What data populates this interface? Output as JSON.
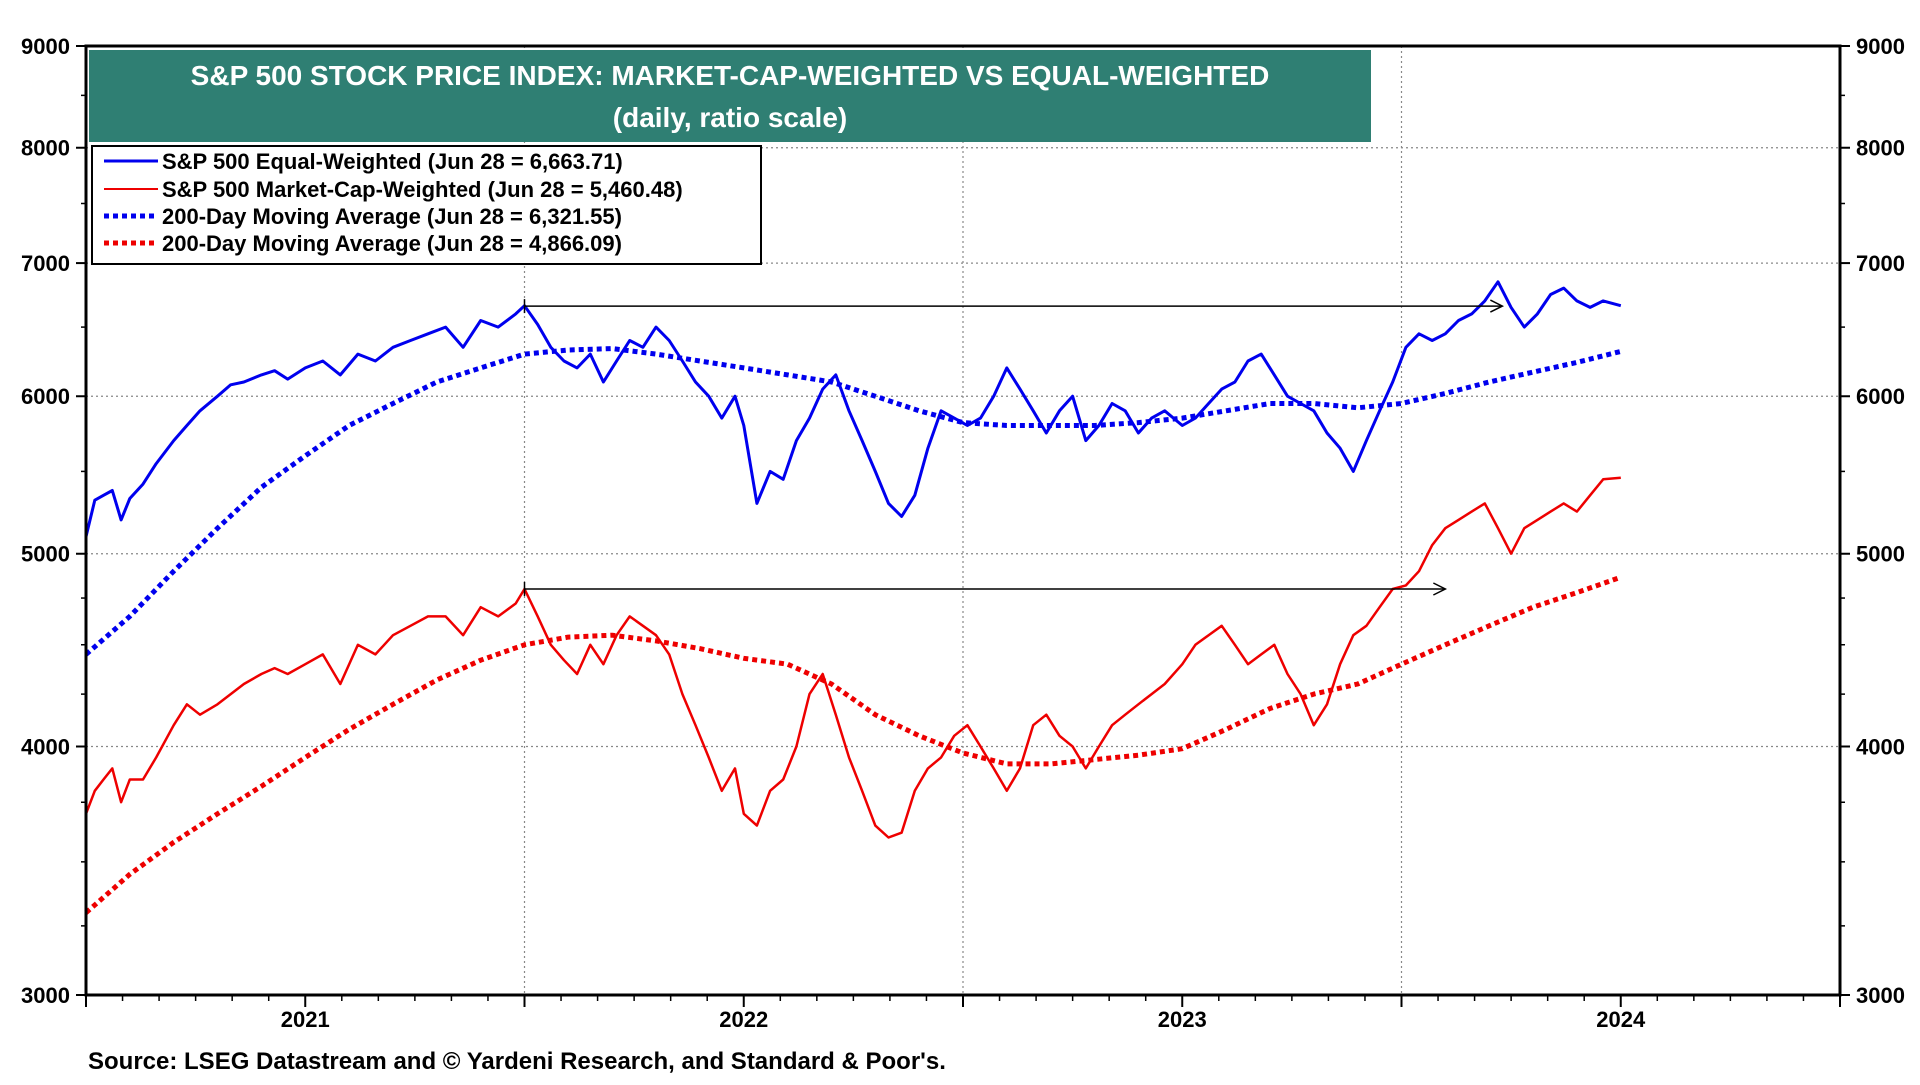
{
  "chart_data": {
    "type": "line",
    "title": "S&P 500 STOCK PRICE INDEX: MARKET-CAP-WEIGHTED VS EQUAL-WEIGHTED",
    "subtitle": "(daily, ratio scale)",
    "scale": "log",
    "ylim": [
      3000,
      9000
    ],
    "xlim": [
      2020.5,
      2024.5
    ],
    "y_ticks": [
      3000,
      4000,
      5000,
      6000,
      7000,
      8000,
      9000
    ],
    "y_tick_labels": [
      "3000",
      "4000",
      "5000",
      "6000",
      "7000",
      "8000",
      "9000"
    ],
    "x_tick_labels": [
      {
        "label": "2021",
        "x": 2021.0
      },
      {
        "label": "2022",
        "x": 2022.0
      },
      {
        "label": "2023",
        "x": 2023.0
      },
      {
        "label": "2024",
        "x": 2024.0
      }
    ],
    "year_gridlines": [
      2021.5,
      2022.5,
      2023.5,
      2024.5
    ],
    "legend_position": "top-left",
    "colors": {
      "banner": "#2f7f73",
      "blue": "#0000ee",
      "red": "#ee0000",
      "grid": "#888888"
    },
    "series": [
      {
        "name": "S&P 500 Equal-Weighted (Jun 28 = 6,663.71)",
        "color": "#0000ee",
        "style": "solid",
        "x": [
          2020.5,
          2020.52,
          2020.54,
          2020.56,
          2020.58,
          2020.6,
          2020.63,
          2020.66,
          2020.7,
          2020.73,
          2020.76,
          2020.8,
          2020.83,
          2020.86,
          2020.9,
          2020.93,
          2020.96,
          2021.0,
          2021.04,
          2021.08,
          2021.12,
          2021.16,
          2021.2,
          2021.24,
          2021.28,
          2021.32,
          2021.36,
          2021.4,
          2021.44,
          2021.48,
          2021.5,
          2021.53,
          2021.56,
          2021.59,
          2021.62,
          2021.65,
          2021.68,
          2021.71,
          2021.74,
          2021.77,
          2021.8,
          2021.83,
          2021.86,
          2021.89,
          2021.92,
          2021.95,
          2021.98,
          2022.0,
          2022.03,
          2022.06,
          2022.09,
          2022.12,
          2022.15,
          2022.18,
          2022.21,
          2022.24,
          2022.27,
          2022.3,
          2022.33,
          2022.36,
          2022.39,
          2022.42,
          2022.45,
          2022.48,
          2022.51,
          2022.54,
          2022.57,
          2022.6,
          2022.63,
          2022.66,
          2022.69,
          2022.72,
          2022.75,
          2022.78,
          2022.81,
          2022.84,
          2022.87,
          2022.9,
          2022.93,
          2022.96,
          2023.0,
          2023.03,
          2023.06,
          2023.09,
          2023.12,
          2023.15,
          2023.18,
          2023.21,
          2023.24,
          2023.27,
          2023.3,
          2023.33,
          2023.36,
          2023.39,
          2023.42,
          2023.45,
          2023.48,
          2023.51,
          2023.54,
          2023.57,
          2023.6,
          2023.63,
          2023.66,
          2023.69,
          2023.72,
          2023.75,
          2023.78,
          2023.81,
          2023.84,
          2023.87,
          2023.9,
          2023.93,
          2023.96,
          2024.0
        ],
        "values": [
          5100,
          5320,
          5350,
          5380,
          5200,
          5330,
          5420,
          5550,
          5700,
          5800,
          5900,
          6000,
          6080,
          6100,
          6150,
          6180,
          6120,
          6200,
          6250,
          6150,
          6300,
          6250,
          6350,
          6400,
          6450,
          6500,
          6350,
          6550,
          6500,
          6600,
          6663,
          6520,
          6350,
          6250,
          6200,
          6300,
          6100,
          6250,
          6400,
          6350,
          6500,
          6400,
          6250,
          6100,
          6000,
          5850,
          6000,
          5800,
          5300,
          5500,
          5450,
          5700,
          5850,
          6050,
          6150,
          5900,
          5700,
          5500,
          5300,
          5220,
          5350,
          5650,
          5900,
          5850,
          5800,
          5850,
          6000,
          6200,
          6050,
          5900,
          5750,
          5900,
          6000,
          5700,
          5800,
          5950,
          5900,
          5750,
          5850,
          5900,
          5800,
          5850,
          5950,
          6050,
          6100,
          6250,
          6300,
          6150,
          6000,
          5950,
          5900,
          5750,
          5650,
          5500,
          5700,
          5900,
          6100,
          6350,
          6450,
          6400,
          6450,
          6550,
          6600,
          6700,
          6850,
          6650,
          6500,
          6600,
          6750,
          6800,
          6700,
          6650,
          6700,
          6663
        ]
      },
      {
        "name": "S&P 500 Market-Cap-Weighted (Jun 28 = 5,460.48)",
        "color": "#ee0000",
        "style": "solid",
        "x": [
          2020.5,
          2020.52,
          2020.54,
          2020.56,
          2020.58,
          2020.6,
          2020.63,
          2020.66,
          2020.7,
          2020.73,
          2020.76,
          2020.8,
          2020.83,
          2020.86,
          2020.9,
          2020.93,
          2020.96,
          2021.0,
          2021.04,
          2021.08,
          2021.12,
          2021.16,
          2021.2,
          2021.24,
          2021.28,
          2021.32,
          2021.36,
          2021.4,
          2021.44,
          2021.48,
          2021.5,
          2021.53,
          2021.56,
          2021.59,
          2021.62,
          2021.65,
          2021.68,
          2021.71,
          2021.74,
          2021.77,
          2021.8,
          2021.83,
          2021.86,
          2021.89,
          2021.92,
          2021.95,
          2021.98,
          2022.0,
          2022.03,
          2022.06,
          2022.09,
          2022.12,
          2022.15,
          2022.18,
          2022.21,
          2022.24,
          2022.27,
          2022.3,
          2022.33,
          2022.36,
          2022.39,
          2022.42,
          2022.45,
          2022.48,
          2022.51,
          2022.54,
          2022.57,
          2022.6,
          2022.63,
          2022.66,
          2022.69,
          2022.72,
          2022.75,
          2022.78,
          2022.81,
          2022.84,
          2022.87,
          2022.9,
          2022.93,
          2022.96,
          2023.0,
          2023.03,
          2023.06,
          2023.09,
          2023.12,
          2023.15,
          2023.18,
          2023.21,
          2023.24,
          2023.27,
          2023.3,
          2023.33,
          2023.36,
          2023.39,
          2023.42,
          2023.45,
          2023.48,
          2023.51,
          2023.54,
          2023.57,
          2023.6,
          2023.63,
          2023.66,
          2023.69,
          2023.72,
          2023.75,
          2023.78,
          2023.81,
          2023.84,
          2023.87,
          2023.9,
          2023.93,
          2023.96,
          2024.0
        ],
        "values": [
          3700,
          3800,
          3850,
          3900,
          3750,
          3850,
          3850,
          3950,
          4100,
          4200,
          4150,
          4200,
          4250,
          4300,
          4350,
          4380,
          4350,
          4400,
          4450,
          4300,
          4500,
          4450,
          4550,
          4600,
          4650,
          4650,
          4550,
          4700,
          4650,
          4720,
          4800,
          4650,
          4500,
          4420,
          4350,
          4500,
          4400,
          4550,
          4650,
          4600,
          4550,
          4450,
          4250,
          4100,
          3950,
          3800,
          3900,
          3700,
          3650,
          3800,
          3850,
          4000,
          4250,
          4350,
          4150,
          3950,
          3800,
          3650,
          3600,
          3620,
          3800,
          3900,
          3950,
          4050,
          4100,
          4000,
          3900,
          3800,
          3900,
          4100,
          4150,
          4050,
          4000,
          3900,
          4000,
          4100,
          4150,
          4200,
          4250,
          4300,
          4400,
          4500,
          4550,
          4600,
          4500,
          4400,
          4450,
          4500,
          4350,
          4250,
          4100,
          4200,
          4400,
          4550,
          4600,
          4700,
          4800,
          4820,
          4900,
          5050,
          5150,
          5200,
          5250,
          5300,
          5150,
          5000,
          5150,
          5200,
          5250,
          5300,
          5250,
          5350,
          5450,
          5460
        ]
      },
      {
        "name": "200-Day Moving Average (Jun 28 = 6,321.55)",
        "color": "#0000ee",
        "style": "dotted",
        "x": [
          2020.5,
          2020.6,
          2020.7,
          2020.8,
          2020.9,
          2021.0,
          2021.1,
          2021.2,
          2021.3,
          2021.4,
          2021.5,
          2021.6,
          2021.7,
          2021.8,
          2021.9,
          2022.0,
          2022.1,
          2022.2,
          2022.3,
          2022.4,
          2022.5,
          2022.6,
          2022.7,
          2022.8,
          2022.9,
          2023.0,
          2023.1,
          2023.2,
          2023.3,
          2023.4,
          2023.5,
          2023.6,
          2023.7,
          2023.8,
          2023.9,
          2024.0
        ],
        "values": [
          4450,
          4650,
          4900,
          5150,
          5400,
          5600,
          5800,
          5950,
          6100,
          6200,
          6300,
          6330,
          6340,
          6300,
          6250,
          6200,
          6150,
          6100,
          6000,
          5900,
          5820,
          5800,
          5800,
          5800,
          5820,
          5850,
          5900,
          5950,
          5950,
          5920,
          5950,
          6020,
          6100,
          6170,
          6240,
          6320
        ]
      },
      {
        "name": "200-Day Moving Average (Jun 28 = 4,866.09)",
        "color": "#ee0000",
        "style": "dotted",
        "x": [
          2020.5,
          2020.6,
          2020.7,
          2020.8,
          2020.9,
          2021.0,
          2021.1,
          2021.2,
          2021.3,
          2021.4,
          2021.5,
          2021.6,
          2021.7,
          2021.8,
          2021.9,
          2022.0,
          2022.1,
          2022.2,
          2022.3,
          2022.4,
          2022.5,
          2022.6,
          2022.7,
          2022.8,
          2022.9,
          2023.0,
          2023.1,
          2023.2,
          2023.3,
          2023.4,
          2023.5,
          2023.6,
          2023.7,
          2023.8,
          2023.9,
          2024.0
        ],
        "values": [
          3300,
          3450,
          3580,
          3700,
          3820,
          3950,
          4080,
          4200,
          4320,
          4420,
          4500,
          4540,
          4550,
          4520,
          4480,
          4430,
          4400,
          4300,
          4150,
          4050,
          3970,
          3920,
          3920,
          3940,
          3960,
          3990,
          4080,
          4180,
          4250,
          4300,
          4400,
          4500,
          4600,
          4700,
          4780,
          4866
        ]
      }
    ],
    "annotations": [
      {
        "type": "arrow",
        "from": [
          2021.5,
          6660
        ],
        "to": [
          2023.73,
          6660
        ],
        "color": "#000000"
      },
      {
        "type": "arrow",
        "from": [
          2021.5,
          4800
        ],
        "to": [
          2023.6,
          4800
        ],
        "color": "#000000"
      }
    ],
    "source": "Source: LSEG Datastream and © Yardeni Research, and Standard & Poor's."
  }
}
